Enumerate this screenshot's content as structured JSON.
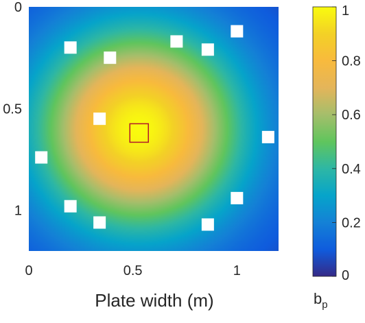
{
  "chart_data": {
    "type": "heatmap",
    "title": "",
    "xlabel": "Plate width (m)",
    "ylabel": "",
    "xlim": [
      0,
      1.2
    ],
    "ylim": [
      0,
      1.2
    ],
    "y_direction": "down",
    "x_ticks": [
      {
        "value": 0,
        "label": "0"
      },
      {
        "value": 0.5,
        "label": "0.5"
      },
      {
        "value": 1,
        "label": "1"
      }
    ],
    "y_ticks": [
      {
        "value": 0,
        "label": "0"
      },
      {
        "value": 0.5,
        "label": "0.5"
      },
      {
        "value": 1,
        "label": "1"
      }
    ],
    "field": {
      "peak_x": 0.53,
      "peak_y": 0.6,
      "peak_value": 1.0,
      "edge_value": 0.05
    },
    "colormap": "parula",
    "colorbar": {
      "label": "b",
      "label_subscript": "p",
      "range": [
        0,
        1
      ],
      "ticks": [
        {
          "value": 0,
          "label": "0"
        },
        {
          "value": 0.2,
          "label": "0.2"
        },
        {
          "value": 0.4,
          "label": "0.4"
        },
        {
          "value": 0.6,
          "label": "0.6"
        },
        {
          "value": 0.8,
          "label": "0.8"
        },
        {
          "value": 1,
          "label": "1"
        }
      ]
    },
    "sensors": [
      {
        "x": 0.2,
        "y": 0.2
      },
      {
        "x": 0.39,
        "y": 0.25
      },
      {
        "x": 0.71,
        "y": 0.17
      },
      {
        "x": 0.86,
        "y": 0.21
      },
      {
        "x": 1.0,
        "y": 0.12
      },
      {
        "x": 0.34,
        "y": 0.55
      },
      {
        "x": 1.15,
        "y": 0.64
      },
      {
        "x": 0.06,
        "y": 0.74
      },
      {
        "x": 1.0,
        "y": 0.94
      },
      {
        "x": 0.2,
        "y": 0.98
      },
      {
        "x": 0.34,
        "y": 1.06
      },
      {
        "x": 0.86,
        "y": 1.07
      }
    ],
    "source": {
      "x": 0.53,
      "y": 0.62,
      "color": "#b2182b"
    },
    "sensor_color": "#ffffff"
  }
}
